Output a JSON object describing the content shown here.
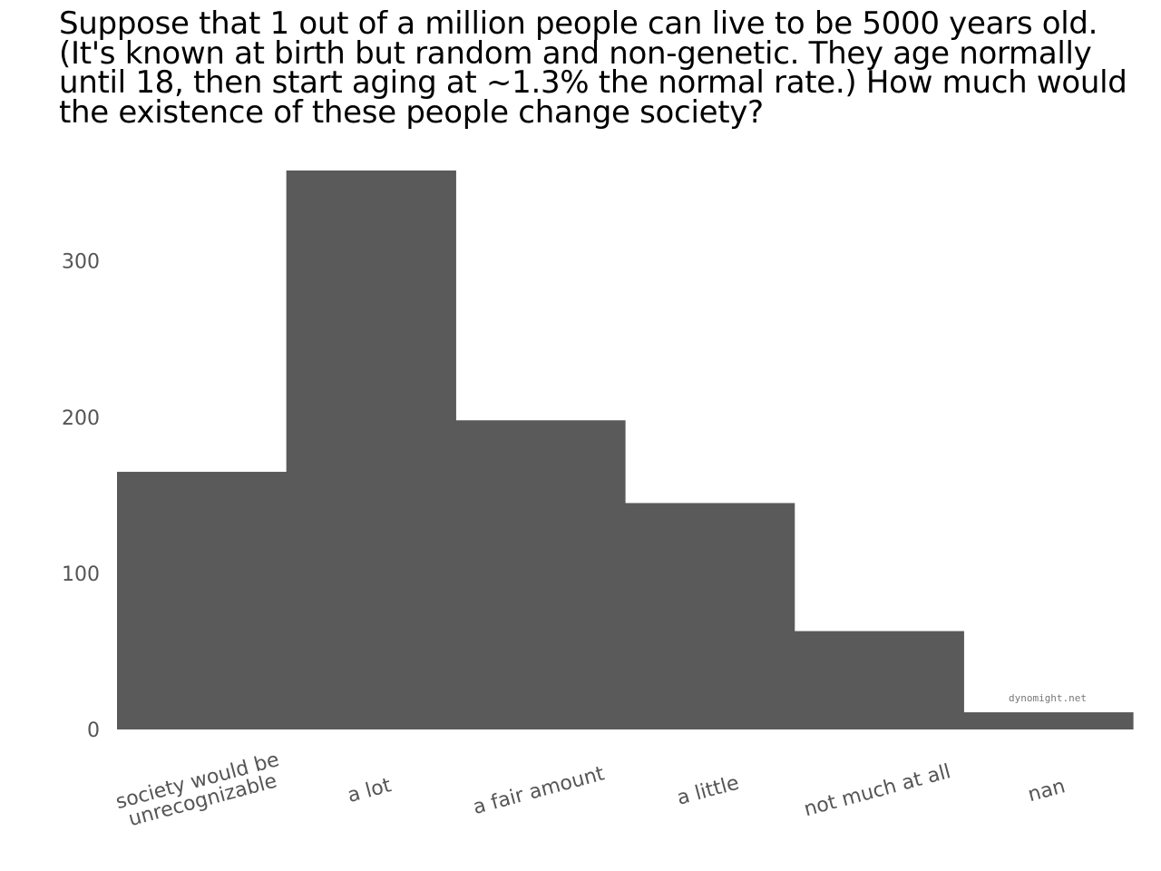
{
  "chart_data": {
    "type": "bar",
    "title": "Suppose that 1 out of a million people can live to be 5000 years old. (It's known at birth but random and non-genetic. They age normally until 18, then start aging at ~1.3% the normal rate.) How much would the existence of these people change society?",
    "categories": [
      [
        "society would be",
        "unrecognizable"
      ],
      [
        "a lot"
      ],
      [
        "a fair amount"
      ],
      [
        "a little"
      ],
      [
        "not much at all"
      ],
      [
        "nan"
      ]
    ],
    "values": [
      165,
      358,
      198,
      145,
      63,
      11
    ],
    "yticks": [
      0,
      100,
      200,
      300
    ],
    "ylim": [
      0,
      360
    ],
    "xlabel": "",
    "ylabel": "",
    "bar_color": "#5a5a5a",
    "grid": false,
    "watermark": "dynomight.net"
  }
}
